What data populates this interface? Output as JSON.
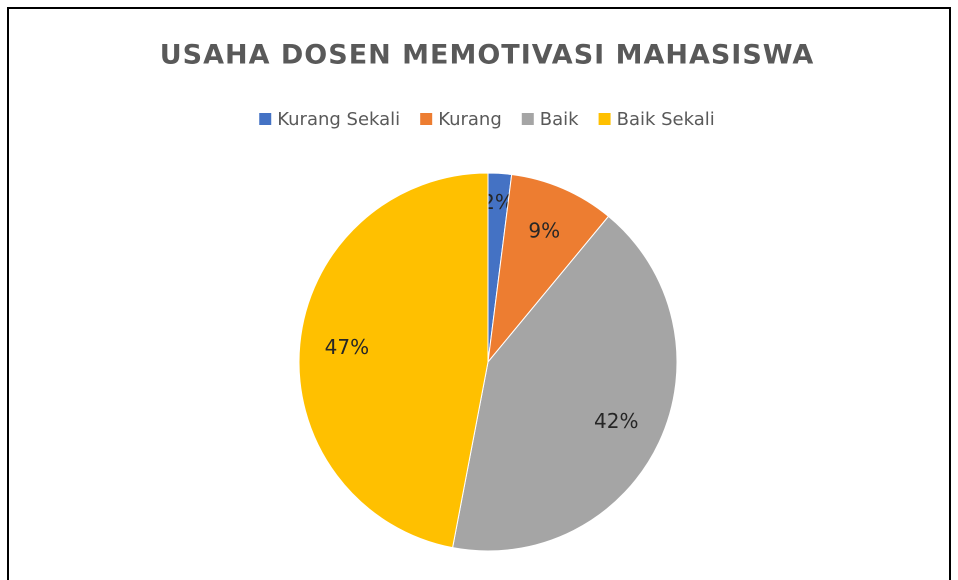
{
  "chart_data": {
    "type": "pie",
    "title": "USAHA DOSEN MEMOTIVASI MAHASISWA",
    "categories": [
      "Kurang Sekali",
      "Kurang",
      "Baik",
      "Baik Sekali"
    ],
    "values": [
      2,
      9,
      42,
      47
    ],
    "value_labels": [
      "2%",
      "9%",
      "42%",
      "47%"
    ],
    "colors": [
      "#4472c4",
      "#ed7d31",
      "#a5a5a5",
      "#ffc000"
    ],
    "legend": "top"
  }
}
